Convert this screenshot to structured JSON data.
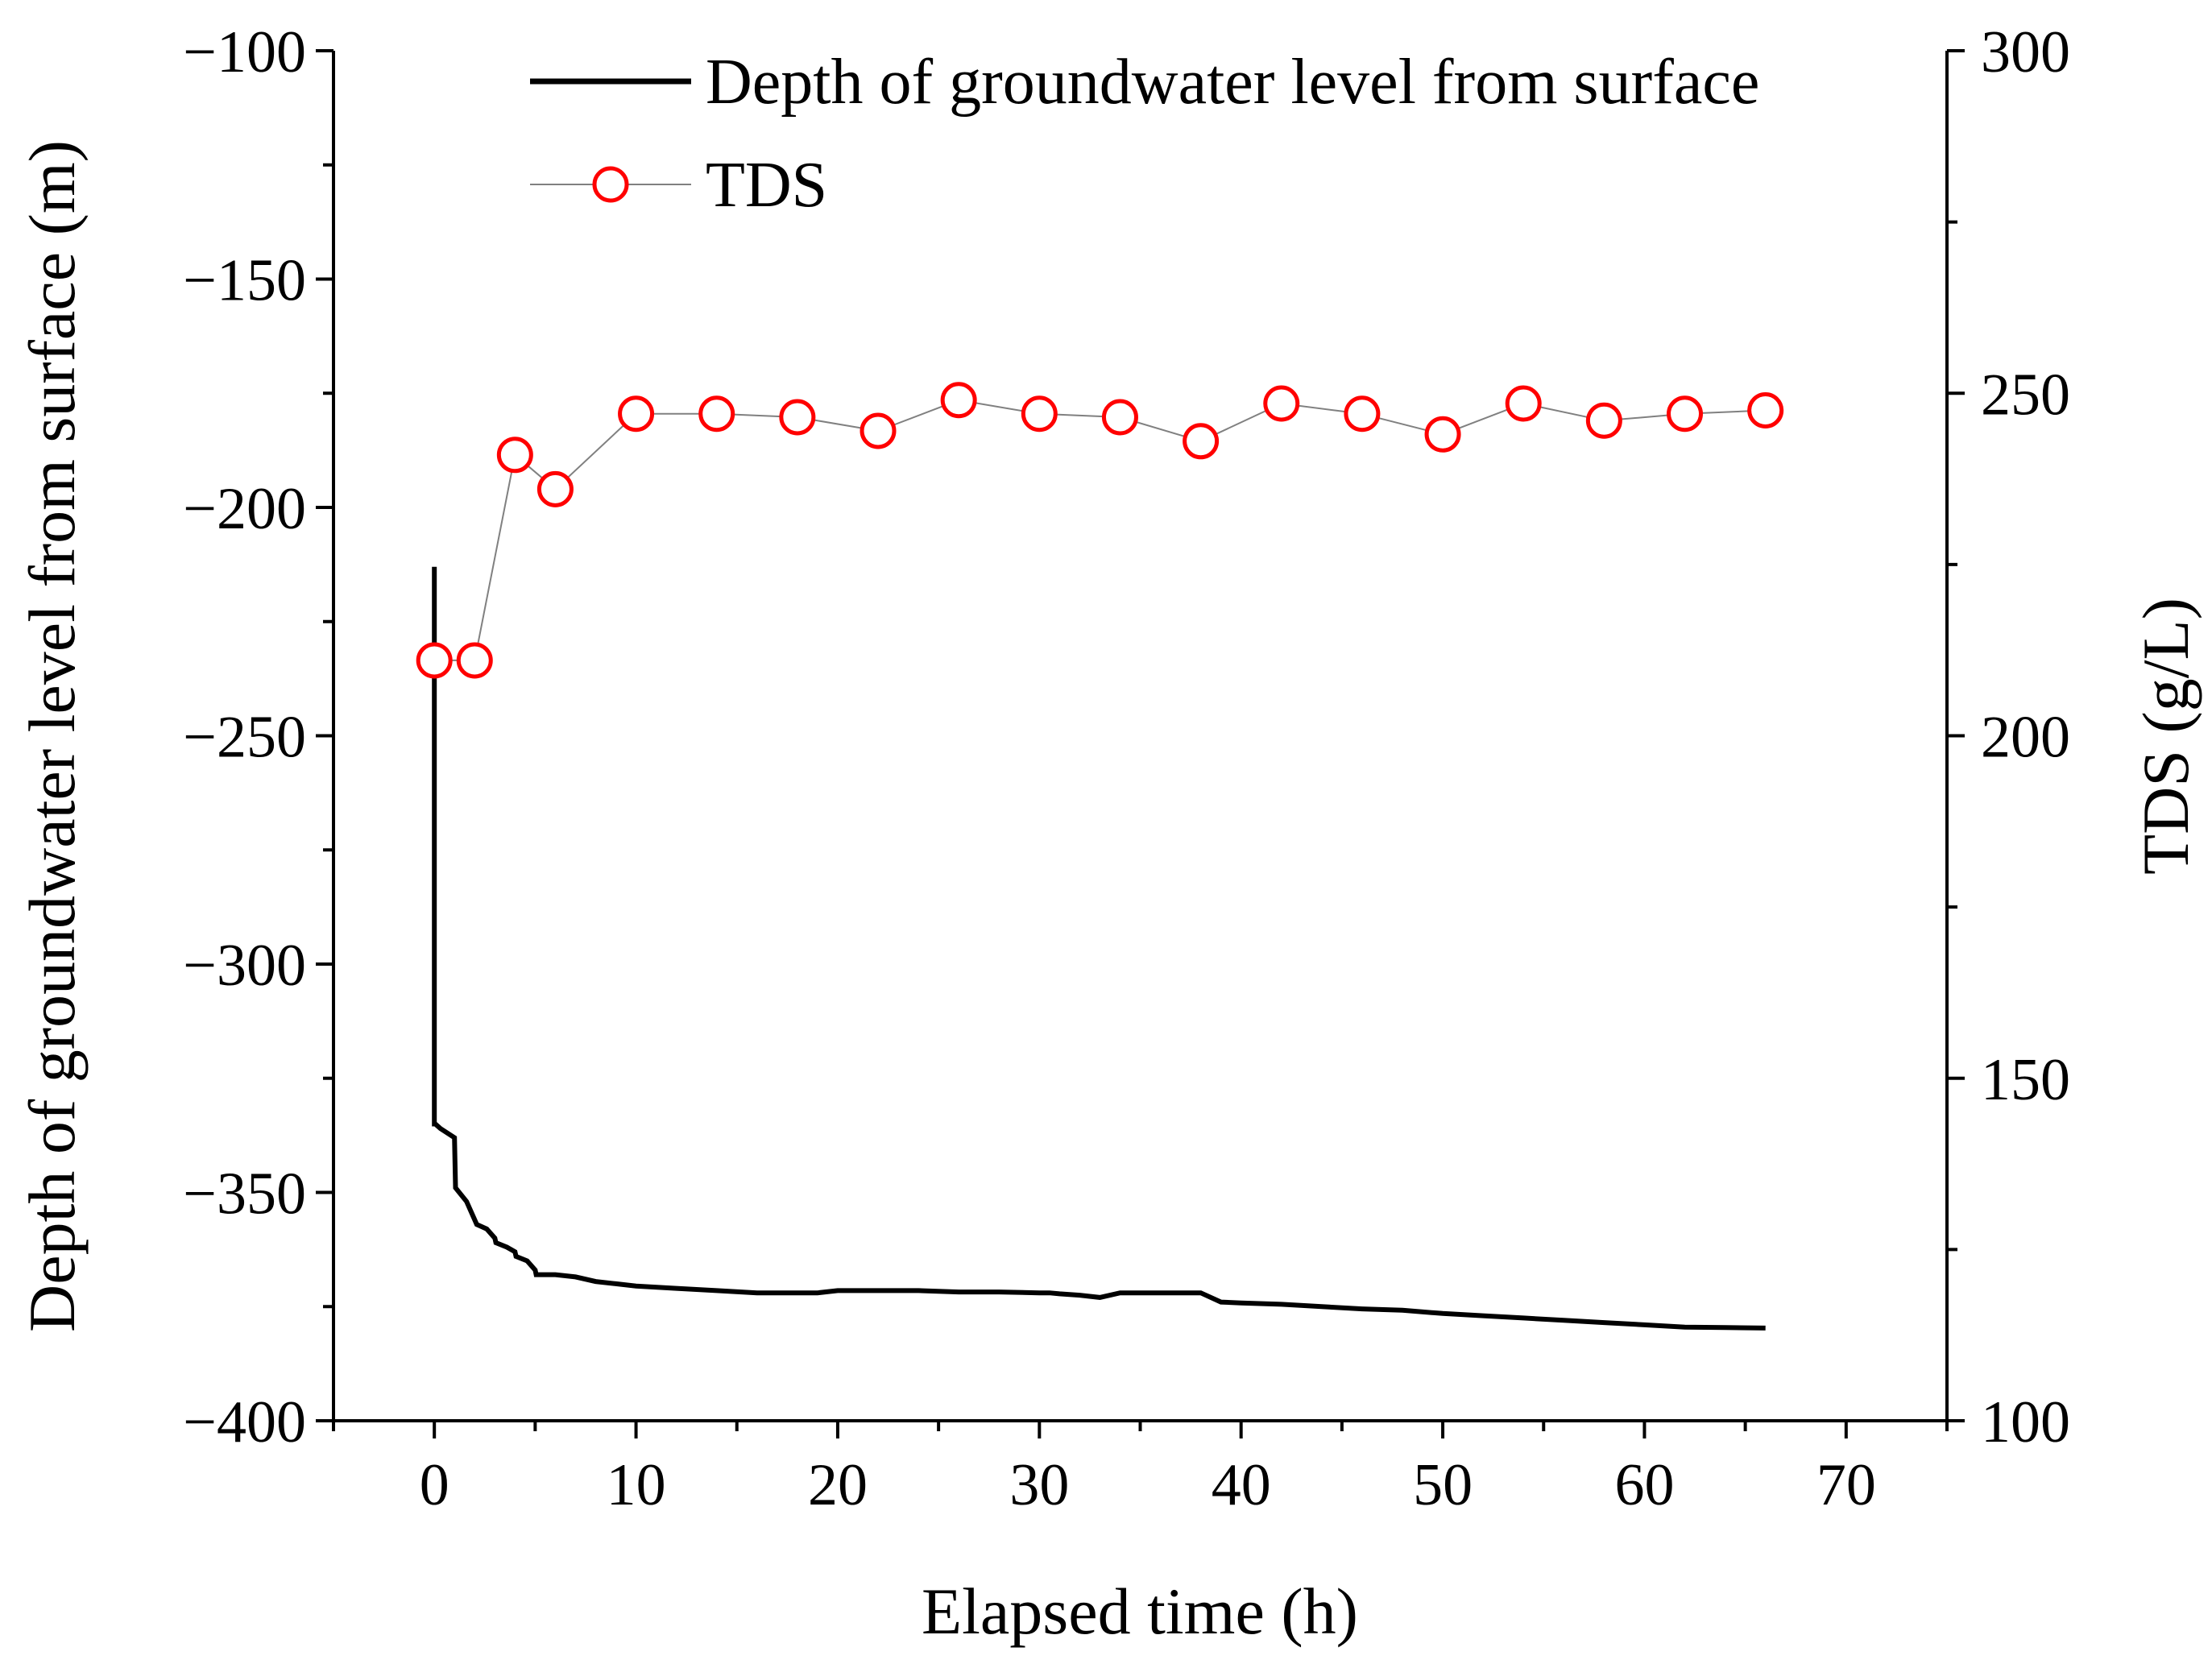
{
  "chart_data": {
    "type": "line",
    "xlabel": "Elapsed time (h)",
    "ylabel_left": "Depth of groundwater level from surface (m)",
    "ylabel_right": "TDS (g/L)",
    "xlim": [
      -5,
      75
    ],
    "ylim_left": [
      -400,
      -100
    ],
    "ylim_right": [
      100,
      300
    ],
    "x_ticks": [
      0,
      10,
      20,
      30,
      40,
      50,
      60,
      70
    ],
    "x_tick_labels": [
      "0",
      "10",
      "20",
      "30",
      "40",
      "50",
      "60",
      "70"
    ],
    "y_left_ticks": [
      -100,
      -150,
      -200,
      -250,
      -300,
      -350,
      -400
    ],
    "y_left_tick_labels": [
      "−100",
      "−150",
      "−200",
      "−250",
      "−300",
      "−350",
      "−400"
    ],
    "y_right_ticks": [
      300,
      250,
      200,
      150,
      100
    ],
    "y_right_tick_labels": [
      "300",
      "250",
      "200",
      "150",
      "100"
    ],
    "legend": {
      "placement": "top",
      "entries": [
        "Depth of groundwater level from surface",
        "TDS"
      ]
    },
    "series": [
      {
        "name": "Depth of groundwater level from surface",
        "axis": "left",
        "style": "solid-line",
        "color": "#000000",
        "x": [
          0,
          0,
          0.05,
          0.3,
          1.0,
          1.05,
          1.6,
          2.0,
          2.1,
          2.6,
          3.0,
          3.05,
          3.6,
          4.0,
          4.05,
          4.6,
          5.0,
          5.05,
          6.0,
          7.0,
          8.0,
          9.0,
          10.0,
          12.0,
          14.0,
          16.0,
          18.0,
          19.0,
          20.0,
          22.0,
          24.0,
          26.0,
          28.0,
          30.0,
          30.5,
          31.0,
          32.0,
          33.0,
          34.0,
          35.0,
          37.0,
          38.0,
          39.0,
          40.0,
          42.0,
          44.0,
          46.0,
          48.0,
          50.0,
          52.0,
          54.0,
          56.0,
          58.0,
          60.0,
          62.0,
          64.0,
          66.0
        ],
        "values": [
          -213,
          -335,
          -335,
          -336,
          -338,
          -349,
          -352,
          -356,
          -357,
          -358,
          -360,
          -361,
          -362,
          -363,
          -364,
          -365,
          -367,
          -368,
          -368,
          -368.5,
          -369.5,
          -370,
          -370.5,
          -371,
          -371.5,
          -372,
          -372,
          -372,
          -371.5,
          -371.5,
          -371.5,
          -371.8,
          -371.8,
          -372,
          -372,
          -372.2,
          -372.5,
          -373,
          -372,
          -372,
          -372,
          -372,
          -374,
          -374.2,
          -374.5,
          -375,
          -375.5,
          -375.8,
          -376.5,
          -377,
          -377.5,
          -378,
          -378.5,
          -379,
          -379.5,
          -379.6,
          -379.7
        ]
      },
      {
        "name": "TDS",
        "axis": "right",
        "style": "open-circle-markers-with-thin-line",
        "color": "#ff0000",
        "line_color": "#808080",
        "x": [
          0,
          2,
          4,
          6,
          10,
          14,
          18,
          22,
          26,
          30,
          34,
          38,
          42,
          46,
          50,
          54,
          58,
          62,
          66
        ],
        "values": [
          211,
          211,
          241,
          236,
          247,
          247,
          246.5,
          244.5,
          249,
          247,
          246.5,
          243,
          248.5,
          247,
          244,
          248.5,
          246,
          247,
          247.5
        ]
      }
    ]
  }
}
